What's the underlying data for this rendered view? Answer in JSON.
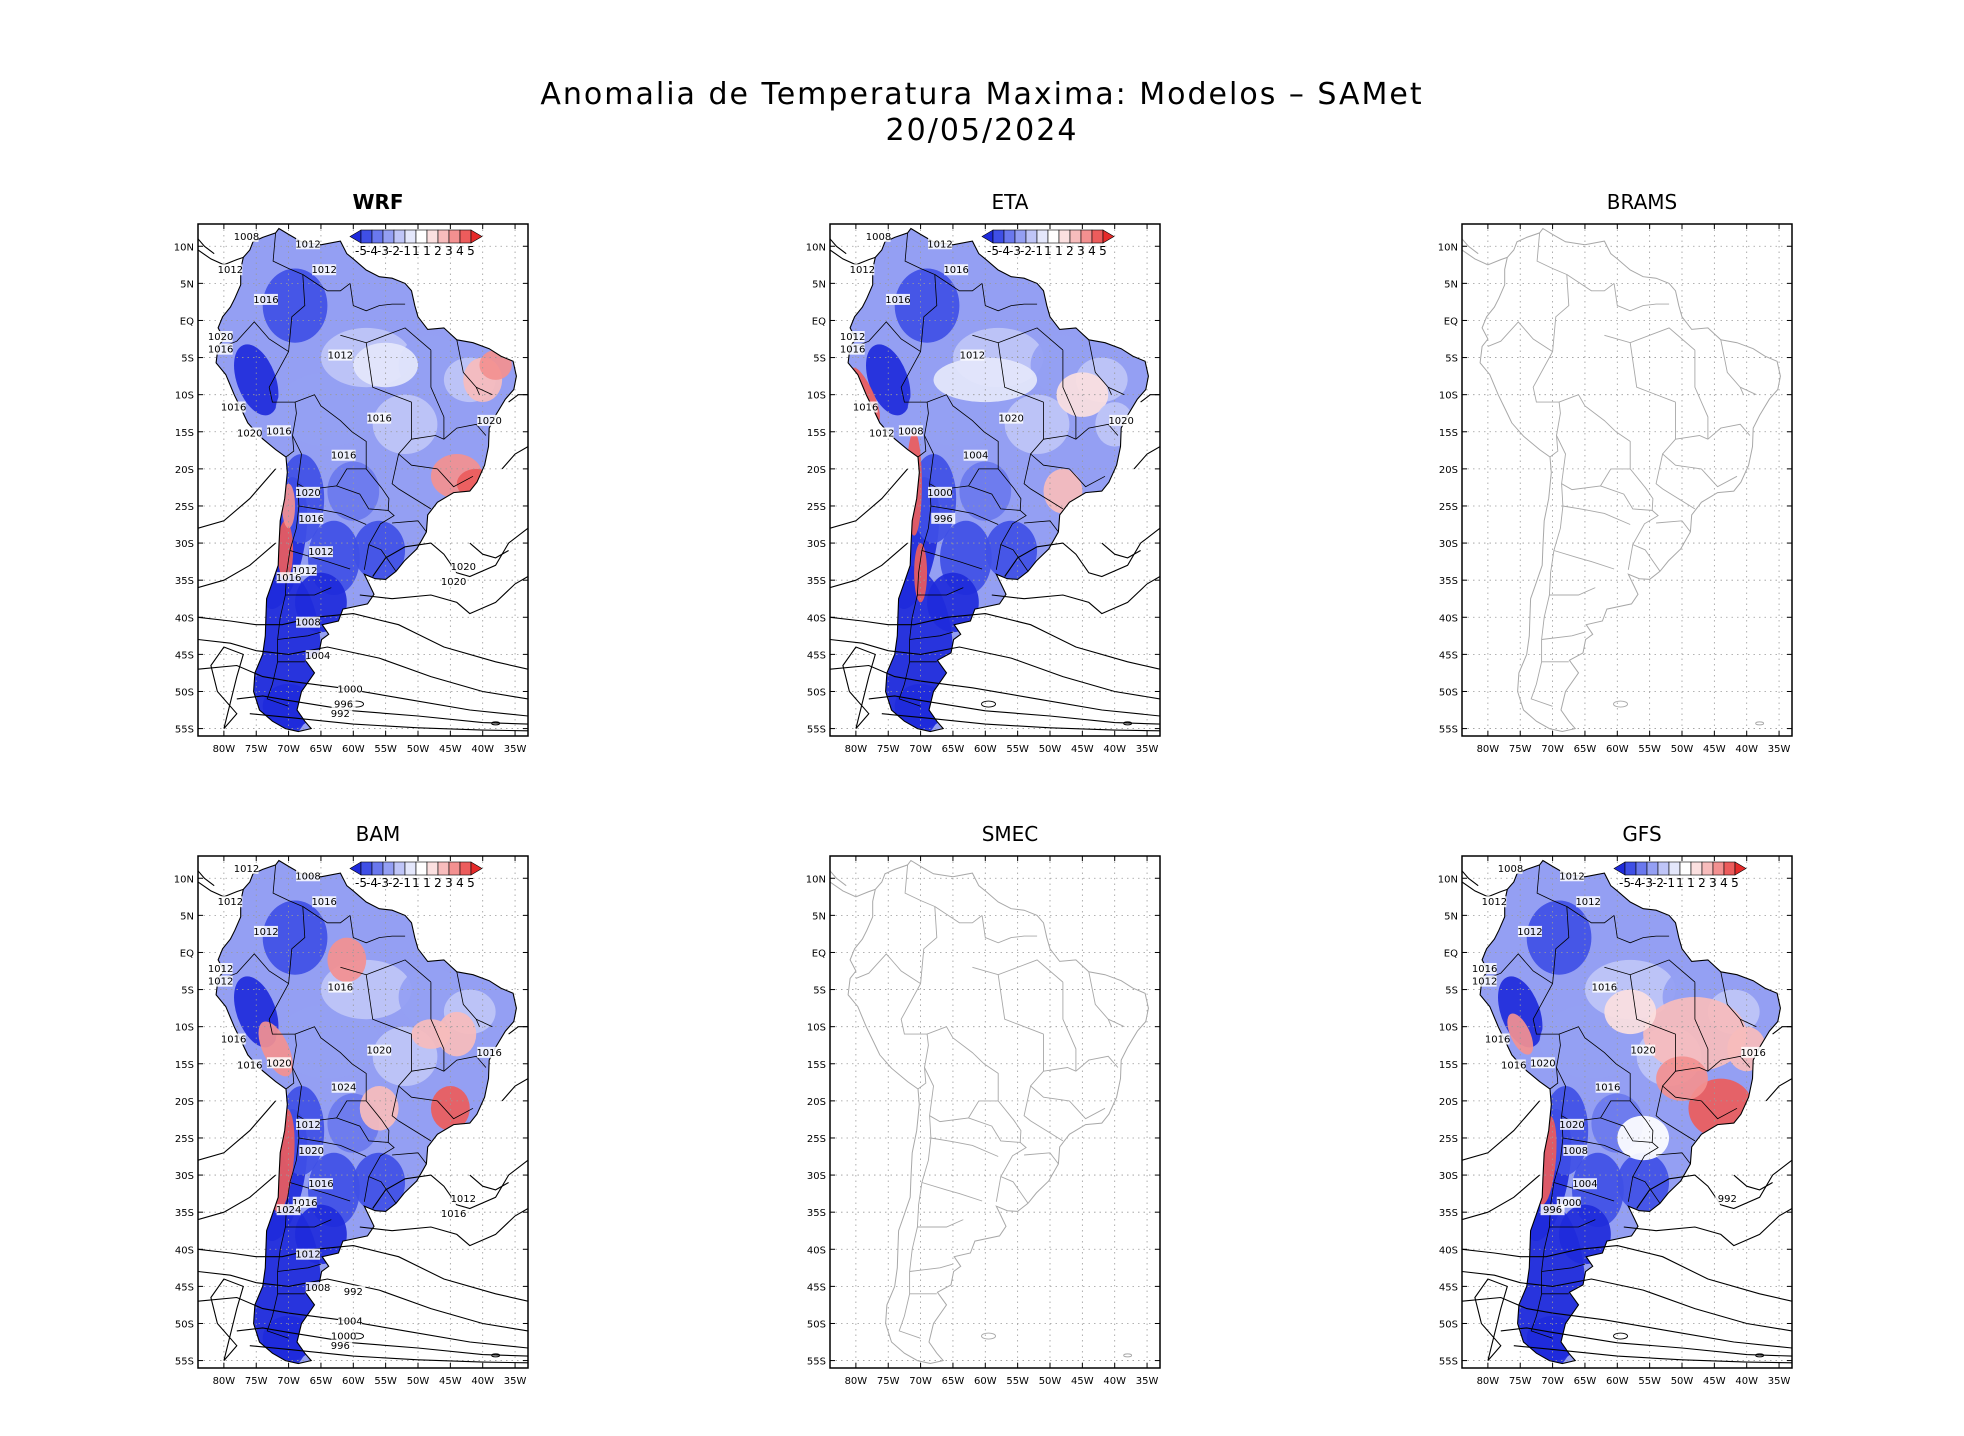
{
  "title": {
    "line1": "Anomalia de Temperatura Maxima: Modelos – SAMet",
    "line2": "20/05/2024"
  },
  "axes": {
    "lat_labels": [
      "10N",
      "5N",
      "EQ",
      "5S",
      "10S",
      "15S",
      "20S",
      "25S",
      "30S",
      "35S",
      "40S",
      "45S",
      "50S",
      "55S"
    ],
    "lon_labels": [
      "80W",
      "75W",
      "70W",
      "65W",
      "60W",
      "55W",
      "50W",
      "45W",
      "40W",
      "35W"
    ]
  },
  "colorbar": {
    "labels": [
      "-5",
      "-4",
      "-3",
      "-2",
      "-1",
      "1",
      "1",
      "2",
      "3",
      "4",
      "5"
    ],
    "colors": [
      "#1e2adb",
      "#3f4fe6",
      "#6a78ee",
      "#949ff3",
      "#bfc5f7",
      "#e4e7fb",
      "#ffffff",
      "#fbe0e0",
      "#f7bcbc",
      "#f39090",
      "#ec5c5c",
      "#e52a2a"
    ]
  },
  "panels": [
    {
      "id": "wrf",
      "name": "WRF",
      "has_data": true,
      "bold": true,
      "isobars": [
        "1008",
        "1012",
        "1012",
        "1016",
        "1012",
        "1020",
        "1016",
        "1012",
        "1016",
        "1016",
        "1020",
        "1020",
        "1016",
        "1016",
        "1020",
        "1016",
        "1012",
        "1012",
        "1016",
        "1020",
        "1020",
        "1008",
        "1004",
        "1000",
        "996",
        "992"
      ]
    },
    {
      "id": "eta",
      "name": "ETA",
      "has_data": true,
      "bold": false,
      "isobars": [
        "1008",
        "1012",
        "1012",
        "1016",
        "1016",
        "1012",
        "1016",
        "1012",
        "1016",
        "1020",
        "1020",
        "1012",
        "1008",
        "1004",
        "1000",
        "996"
      ]
    },
    {
      "id": "brams",
      "name": "BRAMS",
      "has_data": false,
      "bold": false,
      "isobars": []
    },
    {
      "id": "bam",
      "name": "BAM",
      "has_data": true,
      "bold": false,
      "isobars": [
        "1012",
        "1008",
        "1012",
        "1012",
        "1016",
        "1012",
        "1012",
        "1016",
        "1016",
        "1020",
        "1016",
        "1016",
        "1020",
        "1024",
        "1012",
        "1020",
        "1016",
        "1016",
        "1024",
        "1012",
        "1016",
        "1012",
        "1008",
        "1004",
        "1000",
        "996",
        "992"
      ]
    },
    {
      "id": "smec",
      "name": "SMEC",
      "has_data": false,
      "bold": false,
      "isobars": []
    },
    {
      "id": "gfs",
      "name": "GFS",
      "has_data": true,
      "bold": false,
      "isobars": [
        "1008",
        "1012",
        "1012",
        "1012",
        "1012",
        "1016",
        "1012",
        "1016",
        "1016",
        "1020",
        "1016",
        "1016",
        "1020",
        "1016",
        "1020",
        "1008",
        "1004",
        "1000",
        "996",
        "992"
      ]
    }
  ]
}
